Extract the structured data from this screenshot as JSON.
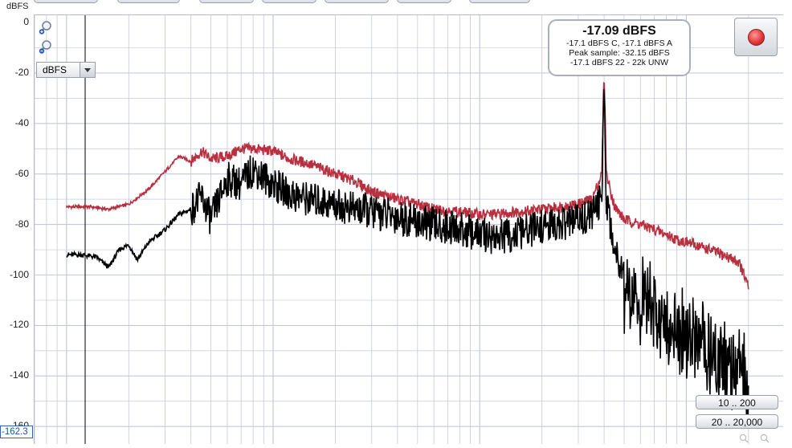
{
  "axis": {
    "unit": "dBFS",
    "y_ticks": [
      "0",
      "-20",
      "-40",
      "-60",
      "-80",
      "-100",
      "-120",
      "-140",
      "-160"
    ],
    "ylim": [
      -162.3,
      0
    ],
    "floor_value": "-162.3"
  },
  "controls": {
    "unit_select": {
      "value": "dBFS"
    },
    "range_buttons": [
      "10 .. 200",
      "20 .. 20,000"
    ]
  },
  "readout": {
    "main": "-17.09 dBFS",
    "lines": [
      "-17.1 dBFS C, -17.1 dBFS A",
      "Peak sample: -32.15 dBFS",
      "-17.1 dBFS 22 - 22k UNW"
    ]
  },
  "icons": {
    "zoom_in": "zoom-in-icon",
    "zoom_out": "zoom-out-icon",
    "record": "record-icon"
  },
  "colors": {
    "peak_trace": "#b83040",
    "average_trace": "#000000",
    "grid": "#c4c8dc"
  },
  "chart_data": {
    "type": "line",
    "xlabel": "",
    "ylabel": "dBFS",
    "ylim": [
      -162.3,
      0
    ],
    "x_scale": "log",
    "grid": true,
    "series": [
      {
        "color": "#b83040",
        "x": [
          10,
          13,
          16,
          20,
          25,
          30,
          35,
          40,
          45,
          50,
          60,
          70,
          80,
          100,
          120,
          150,
          200,
          250,
          300,
          400,
          500,
          600,
          800,
          1000,
          1200,
          1500,
          2000,
          2500,
          3000,
          3500,
          3900,
          4000,
          4100,
          4500,
          5000,
          6000,
          7000,
          8000,
          9000,
          10000,
          12000,
          14000,
          16000,
          18000,
          20000
        ],
        "y": [
          -73,
          -73,
          -74,
          -72,
          -66,
          -59,
          -53,
          -55,
          -51,
          -54,
          -53,
          -50,
          -50,
          -51,
          -54,
          -56,
          -60,
          -63,
          -67,
          -70,
          -72,
          -74,
          -75,
          -76,
          -76,
          -75,
          -74,
          -73,
          -72,
          -70,
          -60,
          -18,
          -60,
          -73,
          -78,
          -80,
          -82,
          -84,
          -86,
          -87,
          -89,
          -91,
          -93,
          -95,
          -105
        ]
      },
      {
        "color": "#000000",
        "x": [
          10,
          12,
          14,
          16,
          18,
          20,
          22,
          25,
          30,
          35,
          40,
          45,
          50,
          60,
          70,
          80,
          100,
          120,
          150,
          200,
          250,
          300,
          400,
          500,
          600,
          800,
          1000,
          1200,
          1500,
          2000,
          2500,
          3000,
          3500,
          3900,
          4000,
          4100,
          4500,
          5000,
          6000,
          7000,
          8000,
          9000,
          10000,
          12000,
          14000,
          16000,
          18000,
          20000
        ],
        "y": [
          -92,
          -92,
          -93,
          -97,
          -90,
          -88,
          -94,
          -87,
          -82,
          -76,
          -74,
          -69,
          -78,
          -62,
          -64,
          -58,
          -64,
          -68,
          -70,
          -72,
          -74,
          -75,
          -77,
          -79,
          -80,
          -82,
          -84,
          -85,
          -84,
          -81,
          -80,
          -78,
          -76,
          -70,
          -22,
          -70,
          -90,
          -98,
          -104,
          -108,
          -112,
          -115,
          -118,
          -122,
          -125,
          -128,
          -130,
          -140
        ]
      }
    ]
  }
}
